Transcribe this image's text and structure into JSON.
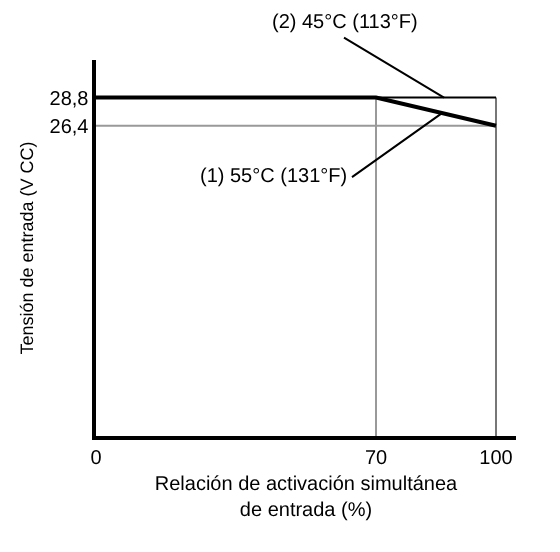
{
  "chart_data": {
    "type": "line",
    "xlabel": "Relación de activación simultánea\nde entrada (%)",
    "ylabel": "Tensión de entrada (V CC)",
    "xlim": [
      0,
      105
    ],
    "ylim": [
      0,
      32
    ],
    "xticks": [
      0,
      70,
      100
    ],
    "yticks": [
      {
        "value": 26.4,
        "label": "26,4"
      },
      {
        "value": 28.8,
        "label": "28,8"
      }
    ],
    "series": [
      {
        "name": "(1) 55°C (131°F)",
        "color": "#000000",
        "x": [
          0,
          70,
          100
        ],
        "values": [
          28.8,
          28.8,
          26.4
        ]
      },
      {
        "name": "(2) 45°C (113°F)",
        "color": "#000000",
        "x": [
          0,
          100
        ],
        "values": [
          28.8,
          28.8
        ]
      }
    ],
    "ref_lines": [
      {
        "axis": "x",
        "value": 70,
        "color": "#999999"
      },
      {
        "axis": "x",
        "value": 100,
        "color": "#777777"
      },
      {
        "axis": "y",
        "value": 26.4,
        "color": "#999999"
      }
    ],
    "grid": false,
    "legend": false,
    "marker": "none",
    "line_style": "solid"
  }
}
